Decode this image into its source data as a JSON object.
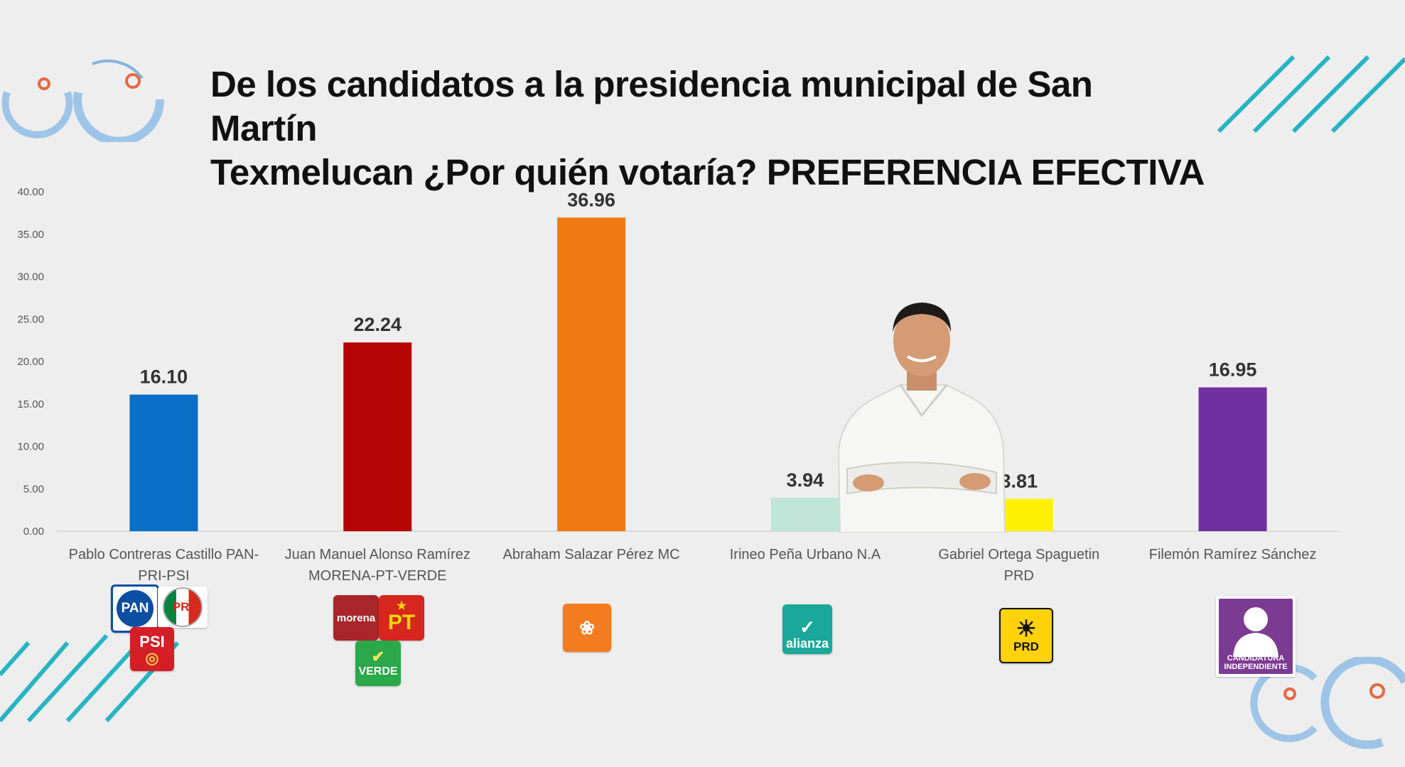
{
  "title": {
    "line1": "De los candidatos a la presidencia municipal de San Martín",
    "line2": "Texmelucan ¿Por quién votaría? PREFERENCIA EFECTIVA"
  },
  "chart_data": {
    "type": "bar",
    "title": "De los candidatos a la presidencia municipal de San Martín Texmelucan ¿Por quién votaría? PREFERENCIA EFECTIVA",
    "xlabel": "",
    "ylabel": "",
    "ylim": [
      0,
      40
    ],
    "yticks": [
      "0.00",
      "5.00",
      "10.00",
      "15.00",
      "20.00",
      "25.00",
      "30.00",
      "35.00",
      "40.00"
    ],
    "grid": false,
    "legend": "none",
    "categories": [
      [
        "Pablo Contreras Castillo PAN-",
        "PRI-PSI"
      ],
      [
        "Juan Manuel Alonso Ramírez",
        "MORENA-PT-VERDE"
      ],
      [
        "Abraham Salazar Pérez MC"
      ],
      [
        "Irineo Peña Urbano N.A"
      ],
      [
        "Gabriel Ortega Spaguetin",
        "PRD"
      ],
      [
        "Filemón Ramírez Sánchez"
      ]
    ],
    "values": [
      16.1,
      22.24,
      36.96,
      3.94,
      3.81,
      16.95
    ],
    "value_labels": [
      "16.10",
      "22.24",
      "36.96",
      "3.94",
      "3.81",
      "16.95"
    ],
    "colors": [
      "#0a70c7",
      "#b50404",
      "#ef7a12",
      "#bfe5d8",
      "#fff200",
      "#7030a0"
    ]
  },
  "party_logos": {
    "pan": "PAN",
    "pri": "PRI",
    "psi": "PSI",
    "morena": "morena",
    "pt": "PT",
    "verde": "VERDE",
    "nueva_alianza": "alianza",
    "prd": "PRD",
    "independiente": [
      "CANDIDATURA",
      "INDEPENDIENTE"
    ]
  },
  "colors": {
    "background": "#eeeeee",
    "decoration_blue": "#8fbde6",
    "decoration_teal": "#28b4c4",
    "decoration_orange": "#e8683f"
  }
}
